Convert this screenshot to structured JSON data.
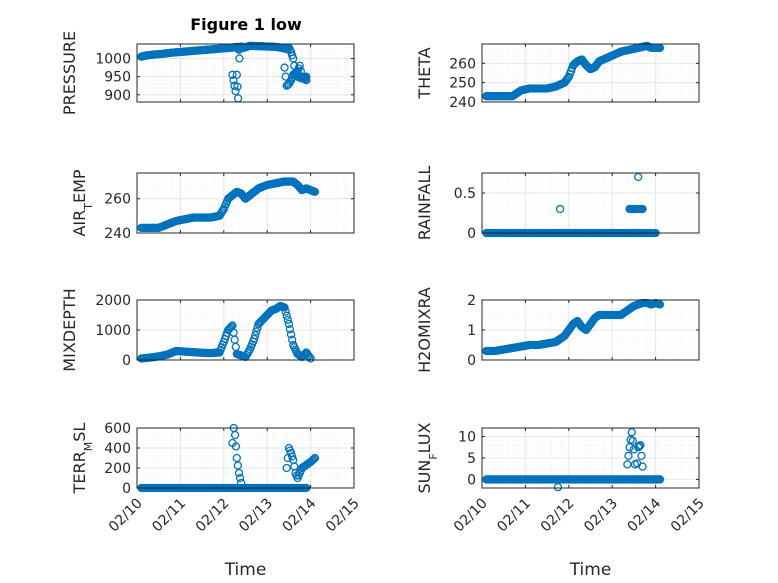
{
  "title": "Figure 1 low",
  "colors": {
    "marker": "#0072BD",
    "axis": "#262626",
    "grid": "#e6e6e6",
    "minor_grid": "#f0f0f0"
  },
  "chart_data": [
    {
      "type": "scatter",
      "id": "pressure",
      "ylabel": "PRESSURE",
      "xlabel": "",
      "title": "Figure 1 low",
      "xlim": [
        0,
        5
      ],
      "ylim": [
        880,
        1040
      ],
      "yticks": [
        900,
        950,
        1000
      ],
      "xticks": [],
      "show_xticklabels": false,
      "grid": "on",
      "minor_grid": "on",
      "x": [
        0.1,
        0.2,
        0.4,
        0.6,
        0.8,
        1.0,
        1.2,
        1.4,
        1.6,
        1.8,
        2.0,
        2.2,
        2.3,
        2.35,
        2.4,
        2.45,
        2.6,
        2.8,
        3.0,
        3.2,
        3.35,
        3.45,
        3.5,
        3.55,
        3.6,
        3.65,
        3.7,
        3.8,
        3.9,
        2.2,
        2.27,
        2.3,
        2.33,
        2.36,
        3.4,
        3.45,
        3.5,
        3.55,
        3.6,
        3.65,
        3.7,
        3.75,
        3.8,
        3.85,
        3.9
      ],
      "y": [
        1005,
        1008,
        1011,
        1013,
        1016,
        1018,
        1020,
        1022,
        1024,
        1026,
        1028,
        1030,
        1032,
        1024,
        1033,
        1029,
        1035,
        1034,
        1033,
        1032,
        1029,
        1026,
        1030,
        1018,
        1000,
        960,
        950,
        945,
        950,
        955,
        910,
        955,
        890,
        1000,
        975,
        925,
        930,
        940,
        955,
        960,
        965,
        980,
        950,
        945,
        940
      ]
    },
    {
      "type": "scatter",
      "id": "theta",
      "ylabel": "THETA",
      "xlabel": "",
      "xlim": [
        0,
        5
      ],
      "ylim": [
        240,
        270
      ],
      "yticks": [
        240,
        250,
        260
      ],
      "xticks": [],
      "show_xticklabels": false,
      "grid": "on",
      "minor_grid": "on",
      "x": [
        0.1,
        0.3,
        0.5,
        0.7,
        0.9,
        1.1,
        1.3,
        1.5,
        1.7,
        1.9,
        2.0,
        2.1,
        2.2,
        2.3,
        2.4,
        2.5,
        2.6,
        2.7,
        2.8,
        3.0,
        3.2,
        3.4,
        3.6,
        3.8,
        3.9,
        4.0,
        4.1
      ],
      "y": [
        243,
        243,
        243,
        243,
        246,
        247,
        247,
        247,
        248,
        250,
        253,
        259,
        261,
        262,
        259,
        257,
        258,
        261,
        262,
        264,
        266,
        267,
        268,
        269,
        268,
        268,
        268
      ]
    },
    {
      "type": "scatter",
      "id": "air_temp",
      "ylabel": "AIR_TEMP",
      "xlabel": "",
      "xlim": [
        0,
        5
      ],
      "ylim": [
        240,
        275
      ],
      "yticks": [
        240,
        260
      ],
      "xticks": [],
      "show_xticklabels": false,
      "grid": "on",
      "minor_grid": "on",
      "x": [
        0.1,
        0.3,
        0.5,
        0.7,
        0.9,
        1.1,
        1.3,
        1.5,
        1.7,
        1.9,
        2.0,
        2.1,
        2.2,
        2.3,
        2.4,
        2.5,
        2.6,
        2.7,
        2.8,
        3.0,
        3.2,
        3.4,
        3.6,
        3.7,
        3.8,
        3.9,
        4.0,
        4.1
      ],
      "y": [
        243,
        243,
        243,
        245,
        247,
        248,
        249,
        249,
        249,
        250,
        254,
        260,
        262,
        264,
        263,
        260,
        262,
        264,
        266,
        268,
        269,
        270,
        270,
        268,
        265,
        266,
        265,
        264
      ]
    },
    {
      "type": "scatter",
      "id": "rainfall",
      "ylabel": "RAINFALL",
      "xlabel": "",
      "xlim": [
        0,
        5
      ],
      "ylim": [
        0,
        0.75
      ],
      "yticks": [
        0,
        0.5
      ],
      "xticks": [],
      "show_xticklabels": false,
      "grid": "on",
      "minor_grid": "on",
      "x": [
        0.1,
        0.3,
        0.5,
        0.7,
        0.9,
        1.1,
        1.3,
        1.5,
        1.7,
        1.9,
        2.1,
        2.3,
        2.5,
        2.7,
        2.9,
        3.1,
        3.3,
        3.5,
        3.6,
        3.8,
        4.0,
        1.8,
        3.4,
        3.45,
        3.5,
        3.55,
        3.6,
        3.65,
        3.7,
        3.6
      ],
      "y": [
        0,
        0,
        0,
        0,
        0,
        0,
        0,
        0,
        0,
        0,
        0,
        0,
        0,
        0,
        0,
        0,
        0,
        0,
        0,
        0,
        0,
        0.3,
        0.3,
        0.3,
        0.3,
        0.3,
        0.3,
        0.3,
        0.3,
        0.7
      ]
    },
    {
      "type": "scatter",
      "id": "mixdepth",
      "ylabel": "MIXDEPTH",
      "xlabel": "",
      "xlim": [
        0,
        5
      ],
      "ylim": [
        0,
        2000
      ],
      "yticks": [
        0,
        1000,
        2000
      ],
      "xticks": [],
      "show_xticklabels": false,
      "grid": "on",
      "minor_grid": "on",
      "x": [
        0.1,
        0.3,
        0.5,
        0.7,
        0.9,
        1.1,
        1.3,
        1.5,
        1.7,
        1.9,
        2.0,
        2.1,
        2.2,
        2.3,
        2.4,
        2.5,
        2.6,
        2.7,
        2.8,
        2.9,
        3.0,
        3.1,
        3.2,
        3.3,
        3.4,
        3.5,
        3.6,
        3.7,
        3.8,
        3.9,
        4.0
      ],
      "y": [
        50,
        80,
        120,
        180,
        300,
        280,
        260,
        240,
        230,
        250,
        600,
        1000,
        1150,
        200,
        150,
        100,
        350,
        700,
        1200,
        1350,
        1500,
        1650,
        1700,
        1800,
        1750,
        1200,
        500,
        200,
        100,
        250,
        50
      ]
    },
    {
      "type": "scatter",
      "id": "h2omixra",
      "ylabel": "H2OMIXRA",
      "xlabel": "",
      "xlim": [
        0,
        5
      ],
      "ylim": [
        0,
        2
      ],
      "yticks": [
        0,
        1,
        2
      ],
      "xticks": [],
      "show_xticklabels": false,
      "grid": "on",
      "minor_grid": "on",
      "x": [
        0.1,
        0.3,
        0.5,
        0.7,
        0.9,
        1.1,
        1.3,
        1.5,
        1.7,
        1.9,
        2.0,
        2.1,
        2.2,
        2.3,
        2.4,
        2.5,
        2.6,
        2.7,
        2.8,
        3.0,
        3.2,
        3.3,
        3.4,
        3.5,
        3.6,
        3.7,
        3.8,
        3.9,
        4.0,
        4.1
      ],
      "y": [
        0.3,
        0.3,
        0.35,
        0.4,
        0.45,
        0.5,
        0.5,
        0.55,
        0.6,
        0.8,
        1.0,
        1.2,
        1.3,
        1.1,
        1.0,
        1.2,
        1.4,
        1.5,
        1.5,
        1.5,
        1.5,
        1.6,
        1.7,
        1.8,
        1.85,
        1.9,
        1.9,
        1.85,
        1.9,
        1.85
      ]
    },
    {
      "type": "scatter",
      "id": "terr_msl",
      "ylabel": "TERR_MSL",
      "xlabel": "Time",
      "xlim": [
        0,
        5
      ],
      "ylim": [
        0,
        600
      ],
      "yticks": [
        0,
        200,
        400,
        600
      ],
      "xticks": [
        0,
        1,
        2,
        3,
        4,
        5
      ],
      "xticklabels": [
        "02/10",
        "02/11",
        "02/12",
        "02/13",
        "02/14",
        "02/15"
      ],
      "show_xticklabels": true,
      "grid": "on",
      "minor_grid": "on",
      "x": [
        0.1,
        0.3,
        0.5,
        0.7,
        0.9,
        1.1,
        1.3,
        1.5,
        1.7,
        1.9,
        2.1,
        2.3,
        2.5,
        2.7,
        2.9,
        3.1,
        3.3,
        3.5,
        3.7,
        3.9,
        2.2,
        2.23,
        2.26,
        2.3,
        2.35,
        2.4,
        3.45,
        3.5,
        3.55,
        3.6,
        3.65,
        3.7,
        3.8,
        3.9,
        4.0,
        4.1
      ],
      "y": [
        0,
        0,
        0,
        0,
        0,
        0,
        0,
        0,
        0,
        0,
        0,
        0,
        0,
        0,
        0,
        0,
        0,
        0,
        0,
        0,
        450,
        600,
        530,
        300,
        150,
        50,
        200,
        400,
        350,
        280,
        150,
        100,
        200,
        230,
        260,
        300
      ]
    },
    {
      "type": "scatter",
      "id": "sun_flux",
      "ylabel": "SUN_FLUX",
      "xlabel": "Time",
      "xlim": [
        0,
        5
      ],
      "ylim": [
        -2,
        12
      ],
      "yticks": [
        0,
        5,
        10
      ],
      "xticks": [
        0,
        1,
        2,
        3,
        4,
        5
      ],
      "xticklabels": [
        "02/10",
        "02/11",
        "02/12",
        "02/13",
        "02/14",
        "02/15"
      ],
      "show_xticklabels": true,
      "grid": "on",
      "minor_grid": "on",
      "x": [
        0.1,
        0.3,
        0.5,
        0.7,
        0.9,
        1.1,
        1.3,
        1.5,
        1.7,
        1.9,
        2.1,
        2.3,
        2.5,
        2.7,
        2.9,
        3.1,
        3.3,
        3.5,
        3.7,
        3.9,
        4.1,
        1.75,
        3.35,
        3.4,
        3.45,
        3.5,
        3.55,
        3.6,
        3.65,
        3.7
      ],
      "y": [
        0,
        0,
        0,
        0,
        0,
        0,
        0,
        0,
        0,
        0,
        0,
        0,
        0,
        0,
        0,
        0,
        0,
        0,
        0,
        0,
        0,
        -1.8,
        3.5,
        7.5,
        11,
        7,
        0,
        7.5,
        8,
        3
      ]
    }
  ]
}
